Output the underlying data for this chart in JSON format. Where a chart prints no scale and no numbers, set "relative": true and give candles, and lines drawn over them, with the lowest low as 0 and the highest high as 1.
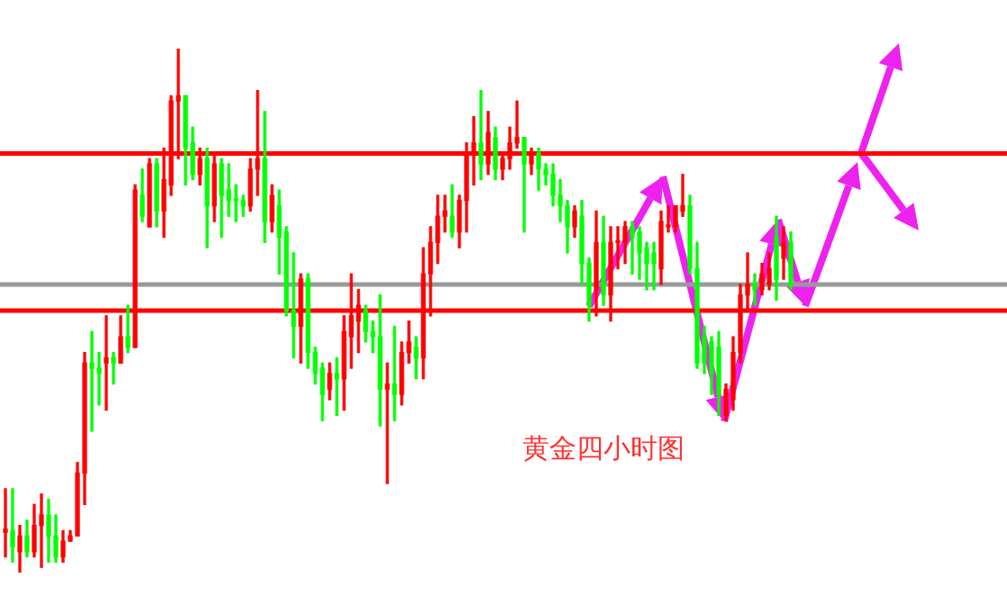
{
  "chart_data": {
    "type": "candlestick",
    "relative": true,
    "legend": false,
    "tick_labels": false,
    "categories": [
      null,
      null,
      null,
      null,
      null,
      null,
      null,
      null,
      null,
      null,
      null,
      null,
      null,
      null,
      null,
      null,
      null,
      null,
      null,
      null,
      null,
      null,
      null,
      null,
      null,
      null,
      null,
      null,
      null,
      null,
      null,
      null,
      null,
      null,
      null,
      null,
      null,
      null,
      null,
      null,
      null,
      null,
      null,
      null,
      null,
      null,
      null,
      null,
      null,
      null,
      null,
      null,
      null,
      null,
      null,
      null,
      null,
      null,
      null,
      null,
      null,
      null,
      null,
      null,
      null,
      null,
      null,
      null,
      null,
      null,
      null,
      null,
      null,
      null,
      null,
      null,
      null,
      null,
      null,
      null,
      null,
      null,
      null,
      null,
      null,
      null,
      null,
      null,
      null,
      null,
      null,
      null,
      null,
      null,
      null,
      null,
      null,
      null,
      null,
      null,
      null,
      null,
      null,
      null,
      null,
      null,
      null,
      null,
      null,
      null
    ],
    "ohlc": [
      [
        0.077,
        0.16,
        0.03,
        0.083
      ],
      [
        0.08,
        0.16,
        0.02,
        0.05
      ],
      [
        0.04,
        0.09,
        0,
        0.07
      ],
      [
        0.07,
        0.1,
        0.03,
        0.04
      ],
      [
        0.04,
        0.13,
        0.03,
        0.09
      ],
      [
        0.09,
        0.15,
        0.01,
        0.11
      ],
      [
        0.11,
        0.14,
        0.02,
        0.07
      ],
      [
        0.07,
        0.11,
        0.02,
        0.03
      ],
      [
        0.03,
        0.08,
        0.02,
        0.06
      ],
      [
        0.06,
        0.08,
        0.06,
        0.07
      ],
      [
        0.07,
        0.21,
        0.07,
        0.19
      ],
      [
        0.19,
        0.42,
        0.13,
        0.4
      ],
      [
        0.4,
        0.46,
        0.27,
        0.39
      ],
      [
        0.39,
        0.42,
        0.32,
        0.38
      ],
      [
        0.4,
        0.49,
        0.31,
        0.41
      ],
      [
        0.41,
        0.42,
        0.36,
        0.4
      ],
      [
        0.4,
        0.49,
        0.4,
        0.45
      ],
      [
        0.45,
        0.51,
        0.42,
        0.43
      ],
      [
        0.43,
        0.74,
        0.43,
        0.73
      ],
      [
        0.72,
        0.77,
        0.67,
        0.68
      ],
      [
        0.66,
        0.79,
        0.66,
        0.78
      ],
      [
        0.78,
        0.79,
        0.66,
        0.69
      ],
      [
        0.69,
        0.81,
        0.64,
        0.75
      ],
      [
        0.74,
        0.91,
        0.72,
        0.9
      ],
      [
        0.9,
        1,
        0.79,
        0.91
      ],
      [
        0.91,
        0.91,
        0.74,
        0.81
      ],
      [
        0.82,
        0.85,
        0.75,
        0.76
      ],
      [
        0.76,
        0.81,
        0.74,
        0.79
      ],
      [
        0.79,
        0.81,
        0.62,
        0.7
      ],
      [
        0.7,
        0.8,
        0.67,
        0.78
      ],
      [
        0.78,
        0.79,
        0.64,
        0.72
      ],
      [
        0.73,
        0.78,
        0.68,
        0.71
      ],
      [
        0.71,
        0.74,
        0.67,
        0.71
      ],
      [
        0.71,
        0.72,
        0.68,
        0.7
      ],
      [
        0.7,
        0.79,
        0.69,
        0.77
      ],
      [
        0.77,
        0.92,
        0.72,
        0.79
      ],
      [
        0.79,
        0.88,
        0.63,
        0.67
      ],
      [
        0.67,
        0.74,
        0.65,
        0.72
      ],
      [
        0.7,
        0.73,
        0.57,
        0.64
      ],
      [
        0.65,
        0.66,
        0.49,
        0.5
      ],
      [
        0.5,
        0.61,
        0.41,
        0.47
      ],
      [
        0.47,
        0.57,
        0.4,
        0.56
      ],
      [
        0.56,
        0.57,
        0.39,
        0.42
      ],
      [
        0.42,
        0.43,
        0.36,
        0.38
      ],
      [
        0.39,
        0.4,
        0.29,
        0.34
      ],
      [
        0.35,
        0.4,
        0.33,
        0.38
      ],
      [
        0.38,
        0.41,
        0.3,
        0.37
      ],
      [
        0.37,
        0.49,
        0.31,
        0.46
      ],
      [
        0.45,
        0.57,
        0.39,
        0.49
      ],
      [
        0.48,
        0.54,
        0.42,
        0.51
      ],
      [
        0.5,
        0.51,
        0.44,
        0.46
      ],
      [
        0.46,
        0.48,
        0.42,
        0.45
      ],
      [
        0.45,
        0.53,
        0.28,
        0.35
      ],
      [
        0.35,
        0.4,
        0.17,
        0.36
      ],
      [
        0.36,
        0.47,
        0.29,
        0.34
      ],
      [
        0.34,
        0.44,
        0.32,
        0.42
      ],
      [
        0.42,
        0.48,
        0.4,
        0.44
      ],
      [
        0.43,
        0.45,
        0.37,
        0.41
      ],
      [
        0.41,
        0.62,
        0.37,
        0.57
      ],
      [
        0.57,
        0.66,
        0.49,
        0.63
      ],
      [
        0.63,
        0.72,
        0.59,
        0.68
      ],
      [
        0.68,
        0.72,
        0.65,
        0.69
      ],
      [
        0.68,
        0.74,
        0.64,
        0.65
      ],
      [
        0.65,
        0.72,
        0.62,
        0.71
      ],
      [
        0.71,
        0.82,
        0.65,
        0.8
      ],
      [
        0.8,
        0.87,
        0.74,
        0.82
      ],
      [
        0.82,
        0.92,
        0.75,
        0.78
      ],
      [
        0.78,
        0.88,
        0.76,
        0.84
      ],
      [
        0.83,
        0.85,
        0.75,
        0.77
      ],
      [
        0.77,
        0.8,
        0.75,
        0.79
      ],
      [
        0.79,
        0.85,
        0.77,
        0.82
      ],
      [
        0.82,
        0.9,
        0.81,
        0.83
      ],
      [
        0.83,
        0.83,
        0.65,
        0.78
      ],
      [
        0.78,
        0.81,
        0.76,
        0.8
      ],
      [
        0.8,
        0.81,
        0.73,
        0.77
      ],
      [
        0.77,
        0.78,
        0.74,
        0.76
      ],
      [
        0.76,
        0.78,
        0.7,
        0.72
      ],
      [
        0.72,
        0.75,
        0.67,
        0.7
      ],
      [
        0.7,
        0.71,
        0.61,
        0.66
      ],
      [
        0.66,
        0.7,
        0.64,
        0.69
      ],
      [
        0.68,
        0.71,
        0.55,
        0.59
      ],
      [
        0.59,
        0.6,
        0.48,
        0.51
      ],
      [
        0.54,
        0.69,
        0.49,
        0.63
      ],
      [
        0.63,
        0.68,
        0.51,
        0.53
      ],
      [
        0.53,
        0.66,
        0.48,
        0.63
      ],
      [
        0.63,
        0.66,
        0.58,
        0.63
      ],
      [
        0.63,
        0.67,
        0.59,
        0.66
      ],
      [
        0.66,
        0.67,
        0.57,
        0.64
      ],
      [
        0.65,
        0.66,
        0.56,
        0.61
      ],
      [
        0.62,
        0.63,
        0.54,
        0.59
      ],
      [
        0.61,
        0.63,
        0.54,
        0.59
      ],
      [
        0.58,
        0.69,
        0.55,
        0.67
      ],
      [
        0.66,
        0.7,
        0.65,
        0.66
      ],
      [
        0.66,
        0.7,
        0.65,
        0.7
      ],
      [
        0.69,
        0.76,
        0.68,
        0.7
      ],
      [
        0.7,
        0.72,
        0.57,
        0.58
      ],
      [
        0.58,
        0.63,
        0.39,
        0.4
      ],
      [
        0.45,
        0.47,
        0.38,
        0.4
      ],
      [
        0.44,
        0.45,
        0.34,
        0.38
      ],
      [
        0.43,
        0.46,
        0.3,
        0.34
      ],
      [
        0.3,
        0.36,
        0.29,
        0.35
      ],
      [
        0.33,
        0.45,
        0.31,
        0.42
      ],
      [
        0.42,
        0.55,
        0.4,
        0.53
      ],
      [
        0.53,
        0.61,
        0.5,
        0.55
      ],
      [
        0.55,
        0.57,
        0.51,
        0.54
      ],
      [
        0.54,
        0.59,
        0.53,
        0.57
      ],
      [
        0.55,
        0.61,
        0.54,
        0.58
      ],
      [
        0.64,
        0.68,
        0.52,
        0.56
      ],
      [
        0.6,
        0.66,
        0.56,
        0.63
      ],
      [
        0.63,
        0.65,
        0.54,
        0.55
      ]
    ],
    "colors": [
      "#ff0000",
      "#00ff00",
      "#ff0000",
      "#00ff00",
      "#ff0000",
      "#ff0000",
      "#00ff00",
      "#00ff00",
      "#ff0000",
      "#ff0000",
      "#ff0000",
      "#ff0000",
      "#00ff00",
      "#00ff00",
      "#ff0000",
      "#00ff00",
      "#ff0000",
      "#00ff00",
      "#ff0000",
      "#00ff00",
      "#ff0000",
      "#00ff00",
      "#ff0000",
      "#ff0000",
      "#ff0000",
      "#00ff00",
      "#00ff00",
      "#ff0000",
      "#00ff00",
      "#ff0000",
      "#00ff00",
      "#00ff00",
      "#00ff00",
      "#00ff00",
      "#ff0000",
      "#ff0000",
      "#00ff00",
      "#ff0000",
      "#00ff00",
      "#00ff00",
      "#00ff00",
      "#ff0000",
      "#00ff00",
      "#00ff00",
      "#00ff00",
      "#ff0000",
      "#00ff00",
      "#ff0000",
      "#ff0000",
      "#ff0000",
      "#00ff00",
      "#00ff00",
      "#00ff00",
      "#ff0000",
      "#00ff00",
      "#ff0000",
      "#ff0000",
      "#00ff00",
      "#ff0000",
      "#ff0000",
      "#ff0000",
      "#ff0000",
      "#00ff00",
      "#ff0000",
      "#ff0000",
      "#ff0000",
      "#00ff00",
      "#ff0000",
      "#00ff00",
      "#ff0000",
      "#ff0000",
      "#ff0000",
      "#00ff00",
      "#ff0000",
      "#00ff00",
      "#00ff00",
      "#00ff00",
      "#00ff00",
      "#00ff00",
      "#ff0000",
      "#00ff00",
      "#00ff00",
      "#ff0000",
      "#00ff00",
      "#ff0000",
      "#ff0000",
      "#ff0000",
      "#00ff00",
      "#00ff00",
      "#00ff00",
      "#00ff00",
      "#ff0000",
      "#ff0000",
      "#ff0000",
      "#ff0000",
      "#00ff00",
      "#00ff00",
      "#00ff00",
      "#00ff00",
      "#00ff00",
      "#ff0000",
      "#ff0000",
      "#ff0000",
      "#ff0000",
      "#00ff00",
      "#ff0000",
      "#ff0000",
      "#00ff00",
      "#ff0000",
      "#00ff00"
    ],
    "ref_lines": [
      {
        "axis": "y",
        "value": 0.8,
        "color": "#ff0000"
      },
      {
        "axis": "y",
        "value": 0.55,
        "color": "#999999"
      },
      {
        "axis": "y",
        "value": 0.5,
        "color": "#ff0000"
      }
    ],
    "annotations": [
      "黄金四小时图"
    ]
  }
}
